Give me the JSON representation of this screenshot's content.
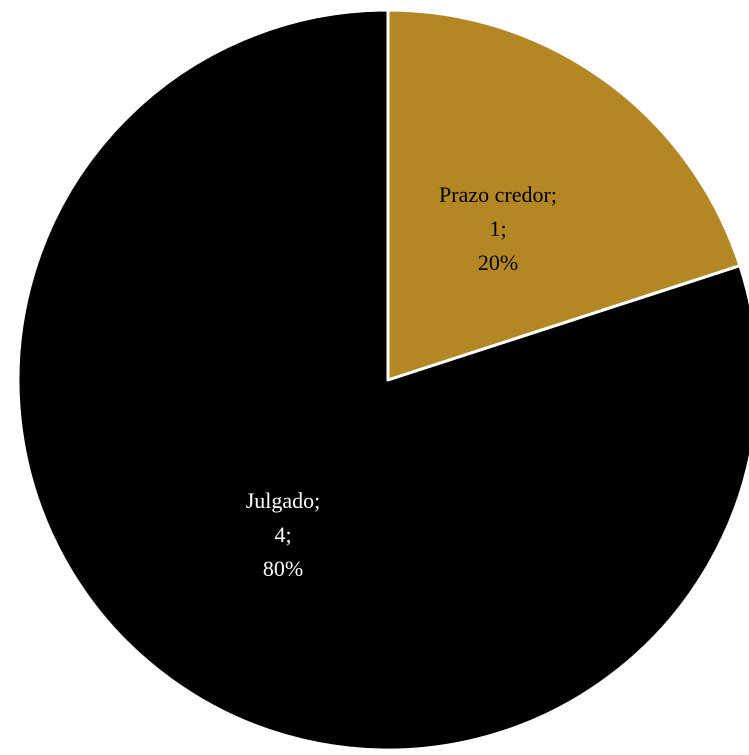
{
  "chart_data": {
    "type": "pie",
    "categories": [
      "Prazo credor",
      "Julgado"
    ],
    "values": [
      1,
      4
    ],
    "percentages": [
      "20%",
      "80%"
    ],
    "colors": [
      "#B38824",
      "#000000"
    ],
    "label_colors": [
      "#000000",
      "#FFFFFF"
    ],
    "slice_border_color": "#FFFFFF",
    "start_angle_deg": 0,
    "direction": "clockwise",
    "labels": [
      {
        "name": "Prazo credor;",
        "value": "1;",
        "percent": "20%"
      },
      {
        "name": "Julgado;",
        "value": "4;",
        "percent": "80%"
      }
    ]
  }
}
